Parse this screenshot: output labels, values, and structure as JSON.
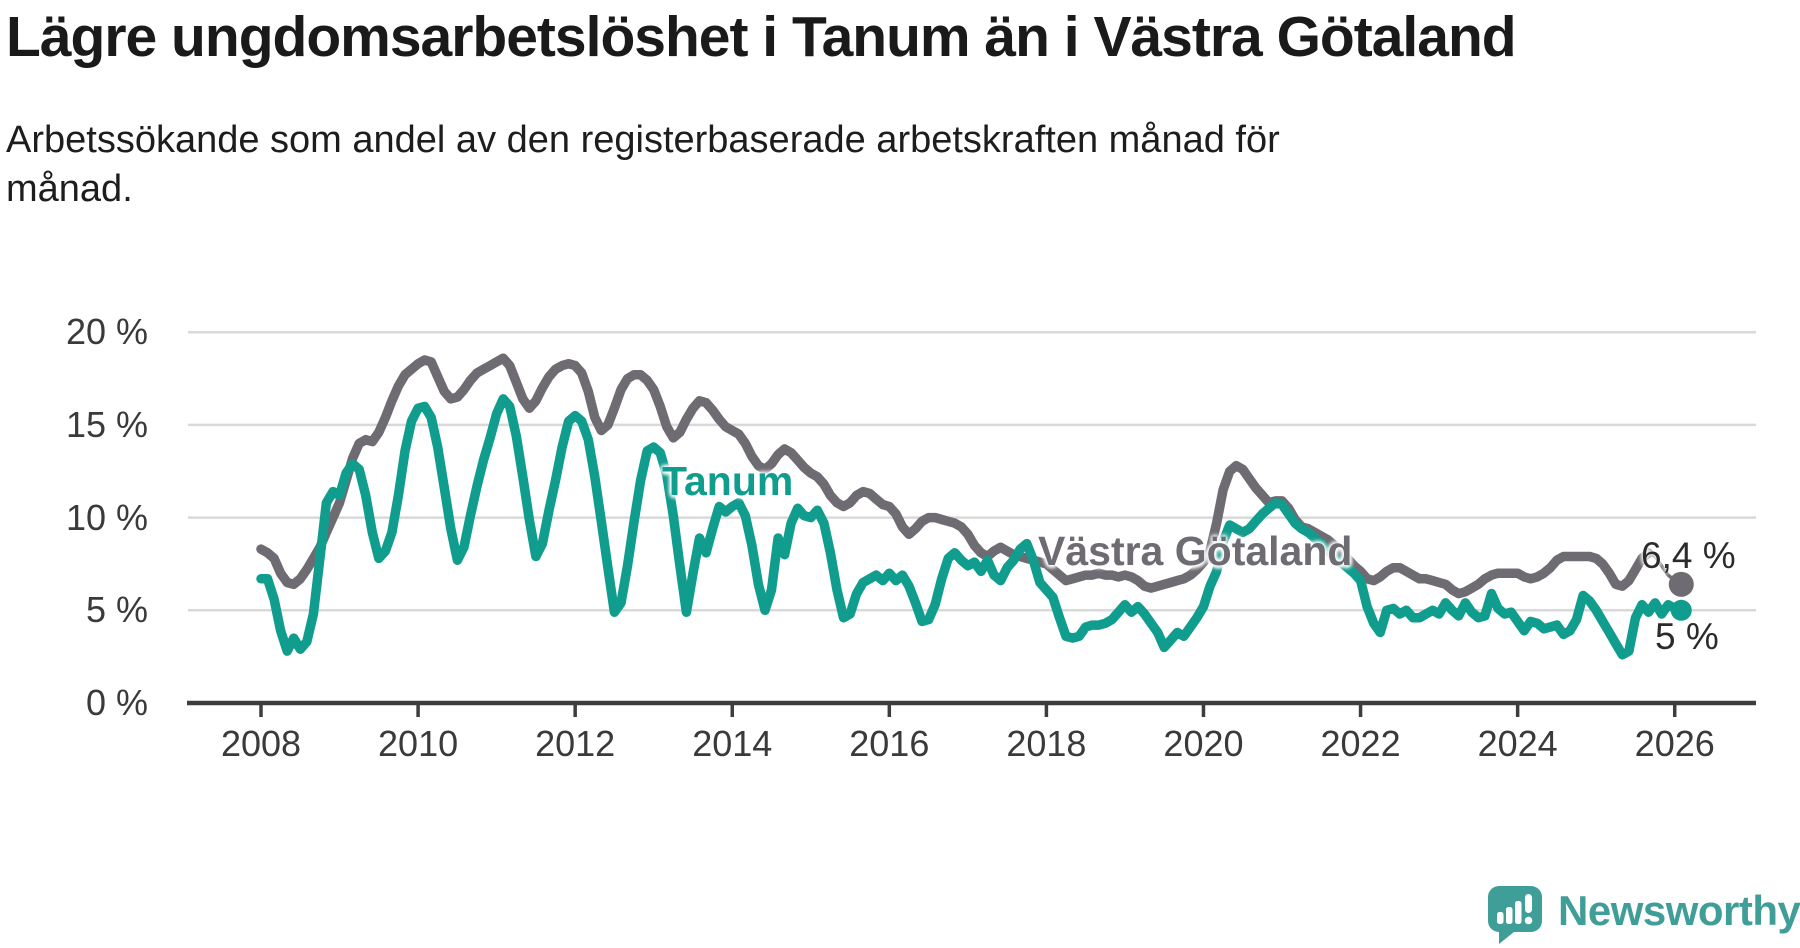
{
  "title": "Lägre ungdomsarbetslöshet i Tanum än i Västra Götaland",
  "subtitle_lines": [
    "Arbetssökande som andel av den registerbaserade arbetskraften månad för",
    "månad."
  ],
  "chart_data": {
    "type": "line",
    "title": "Lägre ungdomsarbetslöshet i Tanum än i Västra Götaland",
    "frequency": "monthly",
    "start": "2008-01",
    "end": "2026-02",
    "grid": "horizontal",
    "legend": "inline-labels",
    "x_axis": {
      "ticks": [
        2008,
        2010,
        2012,
        2014,
        2016,
        2018,
        2020,
        2022,
        2024,
        2026
      ]
    },
    "y_axis": {
      "ticks": [
        0,
        5,
        10,
        15,
        20
      ],
      "tick_labels": [
        "0 %",
        "5 %",
        "10 %",
        "15 %",
        "20 %"
      ],
      "unit": "%",
      "ylim": [
        0,
        21
      ]
    },
    "series": [
      {
        "name": "Tanum",
        "color": "#119D8E",
        "end_value": 5.0,
        "end_label": "5 %",
        "values": [
          6.7,
          6.7,
          5.6,
          3.9,
          2.8,
          3.5,
          2.9,
          3.3,
          4.8,
          7.8,
          10.8,
          11.4,
          11.2,
          12.4,
          12.9,
          12.6,
          11.2,
          9.2,
          7.8,
          8.2,
          9.2,
          11.2,
          13.6,
          15.2,
          15.9,
          16.0,
          15.4,
          13.8,
          11.6,
          9.4,
          7.7,
          8.4,
          10.1,
          11.7,
          13.1,
          14.3,
          15.6,
          16.4,
          16.0,
          14.4,
          12.2,
          9.9,
          7.9,
          8.6,
          10.4,
          12.0,
          13.8,
          15.2,
          15.5,
          15.2,
          14.2,
          12.2,
          9.8,
          7.3,
          4.9,
          5.4,
          7.4,
          9.8,
          12.0,
          13.6,
          13.8,
          13.5,
          12.3,
          10.1,
          7.4,
          4.9,
          7.0,
          8.9,
          8.1,
          9.4,
          10.6,
          10.3,
          10.6,
          10.8,
          10.1,
          8.5,
          6.4,
          5.0,
          6.1,
          8.9,
          8.0,
          9.7,
          10.5,
          10.1,
          10.0,
          10.4,
          9.7,
          8.1,
          6.1,
          4.6,
          4.8,
          5.9,
          6.5,
          6.7,
          6.9,
          6.6,
          7.0,
          6.6,
          6.9,
          6.3,
          5.4,
          4.4,
          4.5,
          5.3,
          6.7,
          7.8,
          8.1,
          7.7,
          7.4,
          7.6,
          7.1,
          7.7,
          6.9,
          6.6,
          7.3,
          7.7,
          8.3,
          8.6,
          7.7,
          6.5,
          6.1,
          5.7,
          4.6,
          3.6,
          3.5,
          3.6,
          4.1,
          4.2,
          4.2,
          4.3,
          4.5,
          4.9,
          5.3,
          4.9,
          5.2,
          4.8,
          4.3,
          3.8,
          3.0,
          3.4,
          3.8,
          3.6,
          4.1,
          4.6,
          5.2,
          6.3,
          7.1,
          8.7,
          9.6,
          9.4,
          9.2,
          9.4,
          9.8,
          10.2,
          10.5,
          10.8,
          10.7,
          10.2,
          9.7,
          9.4,
          9.2,
          8.9,
          8.6,
          8.2,
          7.9,
          7.6,
          7.3,
          7.0,
          6.6,
          5.2,
          4.3,
          3.8,
          5.0,
          5.1,
          4.8,
          5.0,
          4.6,
          4.6,
          4.8,
          5.0,
          4.8,
          5.4,
          5.0,
          4.7,
          5.4,
          4.9,
          4.6,
          4.7,
          5.9,
          5.1,
          4.8,
          4.9,
          4.4,
          3.9,
          4.4,
          4.3,
          4.0,
          4.1,
          4.2,
          3.7,
          3.9,
          4.5,
          5.8,
          5.5,
          5.0,
          4.4,
          3.8,
          3.2,
          2.6,
          2.8,
          4.6,
          5.3,
          4.9,
          5.4,
          4.8,
          5.3,
          5.1,
          5.0
        ]
      },
      {
        "name": "Västra Götaland",
        "color": "#6F6B73",
        "end_value": 6.4,
        "end_label": "6,4 %",
        "values": [
          8.3,
          8.1,
          7.8,
          7.0,
          6.5,
          6.4,
          6.7,
          7.2,
          7.8,
          8.4,
          9.2,
          10.0,
          10.8,
          12.0,
          13.2,
          14.0,
          14.2,
          14.1,
          14.6,
          15.4,
          16.3,
          17.1,
          17.7,
          18.0,
          18.3,
          18.5,
          18.4,
          17.6,
          16.8,
          16.4,
          16.5,
          16.9,
          17.4,
          17.8,
          18.0,
          18.2,
          18.4,
          18.6,
          18.2,
          17.3,
          16.4,
          15.9,
          16.3,
          17.0,
          17.6,
          18.0,
          18.2,
          18.3,
          18.2,
          17.8,
          16.8,
          15.4,
          14.7,
          15.0,
          15.9,
          16.9,
          17.5,
          17.7,
          17.7,
          17.4,
          16.9,
          16.0,
          14.9,
          14.3,
          14.6,
          15.3,
          15.9,
          16.3,
          16.2,
          15.8,
          15.3,
          14.9,
          14.7,
          14.5,
          14.0,
          13.3,
          12.8,
          12.6,
          12.9,
          13.4,
          13.7,
          13.5,
          13.1,
          12.7,
          12.4,
          12.2,
          11.8,
          11.2,
          10.8,
          10.6,
          10.8,
          11.2,
          11.4,
          11.3,
          11.0,
          10.7,
          10.6,
          10.2,
          9.5,
          9.1,
          9.4,
          9.8,
          10.0,
          10.0,
          9.9,
          9.8,
          9.7,
          9.5,
          9.1,
          8.5,
          8.1,
          7.9,
          8.2,
          8.4,
          8.2,
          8.0,
          7.9,
          7.8,
          7.7,
          7.6,
          7.5,
          7.2,
          6.9,
          6.6,
          6.7,
          6.8,
          6.9,
          6.9,
          7.0,
          6.9,
          6.9,
          6.8,
          6.9,
          6.8,
          6.6,
          6.3,
          6.2,
          6.3,
          6.4,
          6.5,
          6.6,
          6.7,
          6.9,
          7.2,
          7.6,
          8.2,
          9.7,
          11.5,
          12.5,
          12.8,
          12.6,
          12.1,
          11.6,
          11.2,
          10.8,
          10.9,
          10.9,
          10.5,
          9.9,
          9.5,
          9.4,
          9.2,
          9.0,
          8.8,
          8.5,
          8.2,
          7.8,
          7.4,
          7.1,
          6.7,
          6.6,
          6.8,
          7.1,
          7.3,
          7.3,
          7.1,
          6.9,
          6.7,
          6.7,
          6.6,
          6.5,
          6.4,
          6.1,
          5.9,
          6.0,
          6.2,
          6.4,
          6.7,
          6.9,
          7.0,
          7.0,
          7.0,
          7.0,
          6.8,
          6.7,
          6.8,
          7.0,
          7.3,
          7.7,
          7.9,
          7.9,
          7.9,
          7.9,
          7.9,
          7.8,
          7.5,
          7.0,
          6.4,
          6.3,
          6.6,
          7.2,
          7.8,
          8.1,
          7.9,
          7.4,
          6.9,
          6.6,
          6.4
        ]
      }
    ]
  },
  "branding": {
    "logo_text": "Newsworthy",
    "logo_color": "#409E98",
    "logo_icon": "speech-bubble-bar-chart-icon"
  }
}
